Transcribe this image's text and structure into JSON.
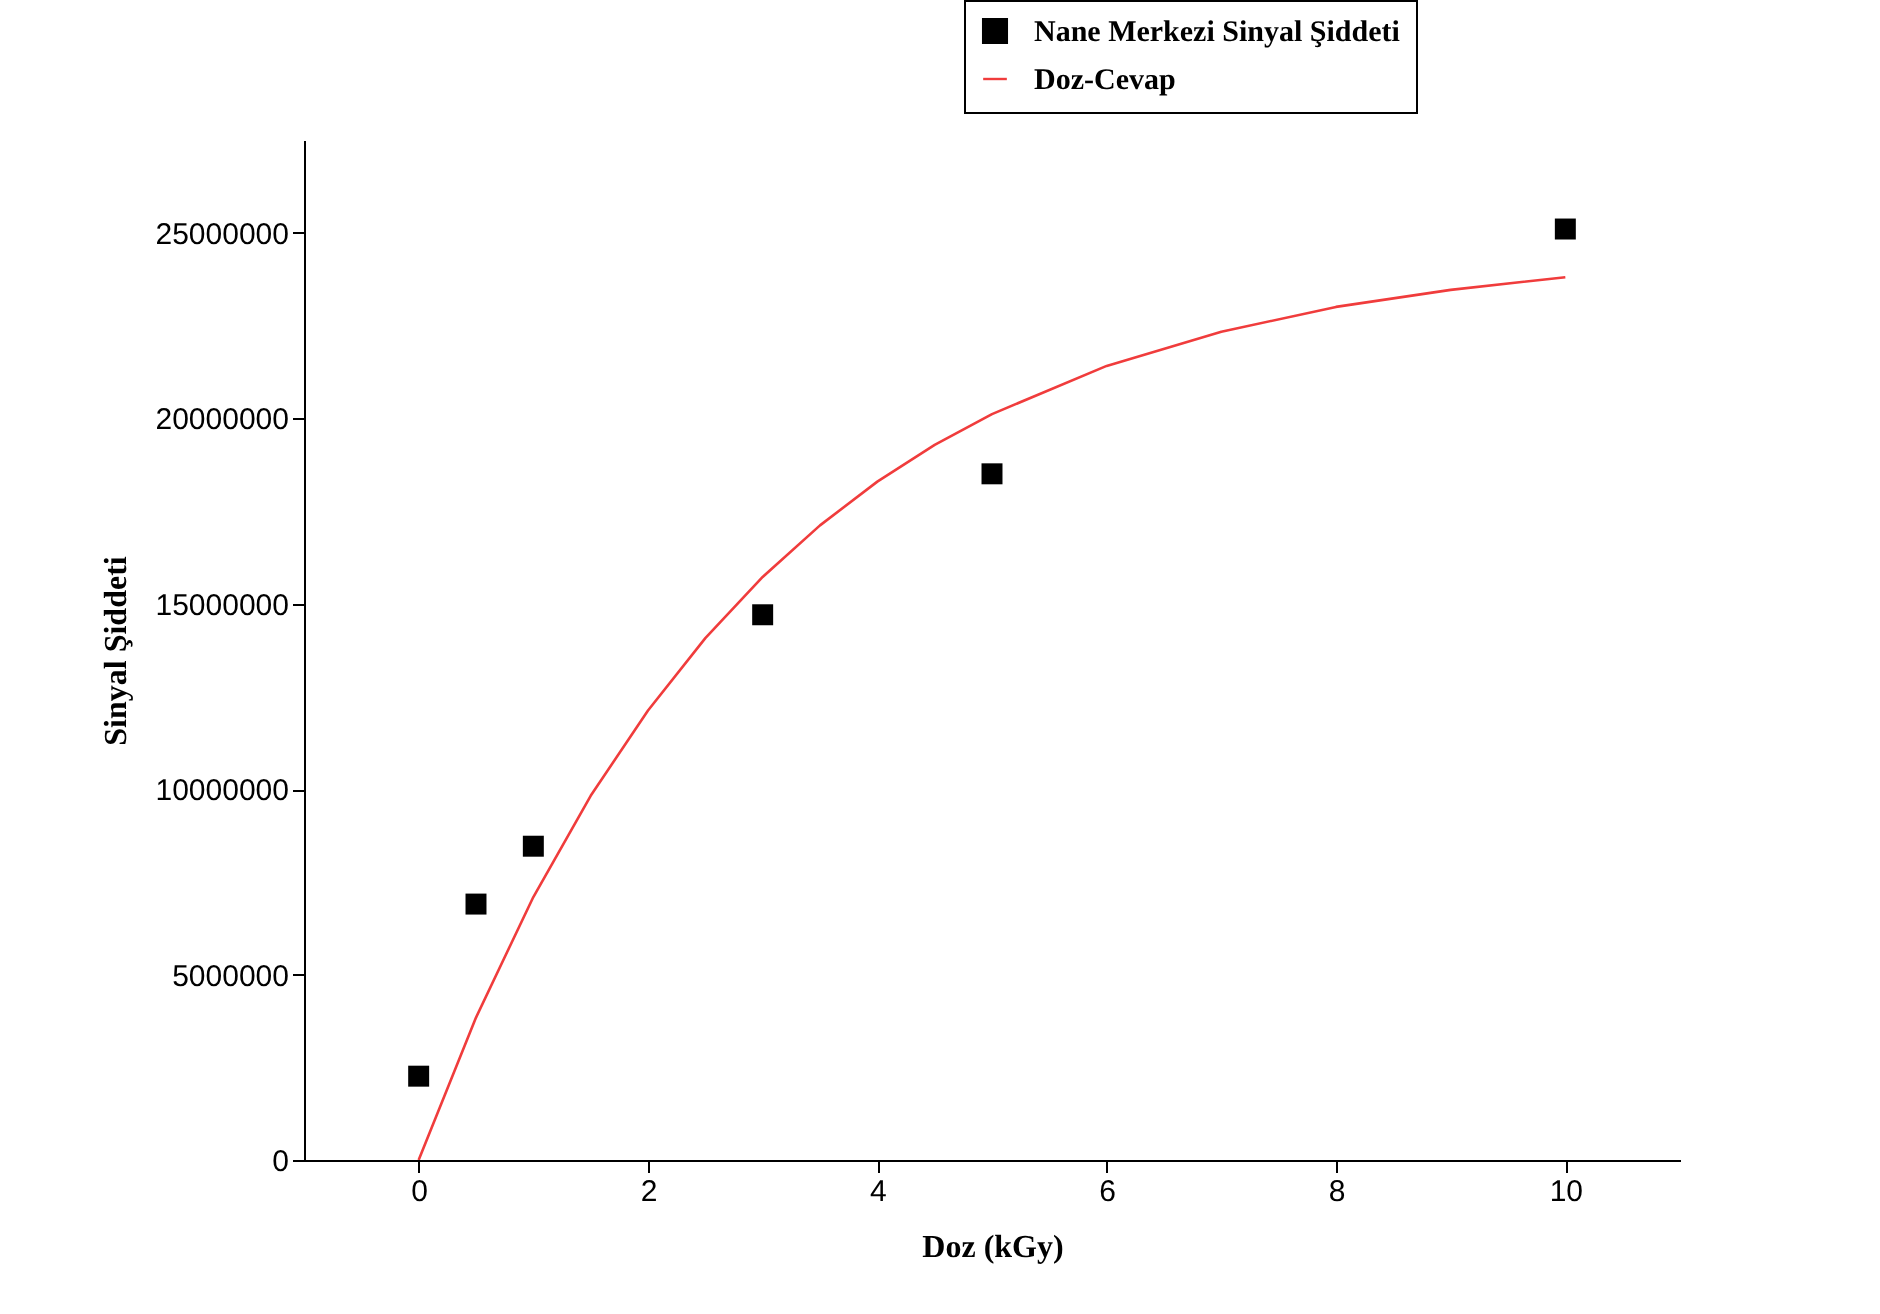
{
  "chart_data": {
    "type": "scatter",
    "xlabel": "Doz (kGy)",
    "ylabel": "Sinyal Şiddeti",
    "xlim": [
      -1,
      11
    ],
    "xticks": [
      0,
      2,
      4,
      6,
      8,
      10
    ],
    "ylim": [
      0,
      27500000
    ],
    "yticks": [
      0,
      5000000,
      10000000,
      15000000,
      20000000,
      25000000
    ],
    "grid": false,
    "legend": "top right",
    "series": [
      {
        "name": "Nane Merkezi Sinyal Şiddeti",
        "color": "#000000",
        "marker": "square",
        "x": [
          0,
          0.5,
          1,
          3,
          5,
          10
        ],
        "values": [
          2260000,
          6900000,
          8460000,
          14700000,
          18500000,
          25100000
        ]
      },
      {
        "name": "Doz-Cevap",
        "type": "line",
        "color": "#f03c3c",
        "x": [
          0,
          0.5,
          1,
          1.5,
          2,
          2.5,
          3,
          3.5,
          4,
          4.5,
          5,
          6,
          7,
          8,
          9,
          10
        ],
        "values": [
          0,
          3840000,
          7090000,
          9820000,
          12120000,
          14070000,
          15720000,
          17110000,
          18290000,
          19280000,
          20110000,
          21410000,
          22330000,
          23000000,
          23460000,
          23800000
        ]
      }
    ]
  }
}
